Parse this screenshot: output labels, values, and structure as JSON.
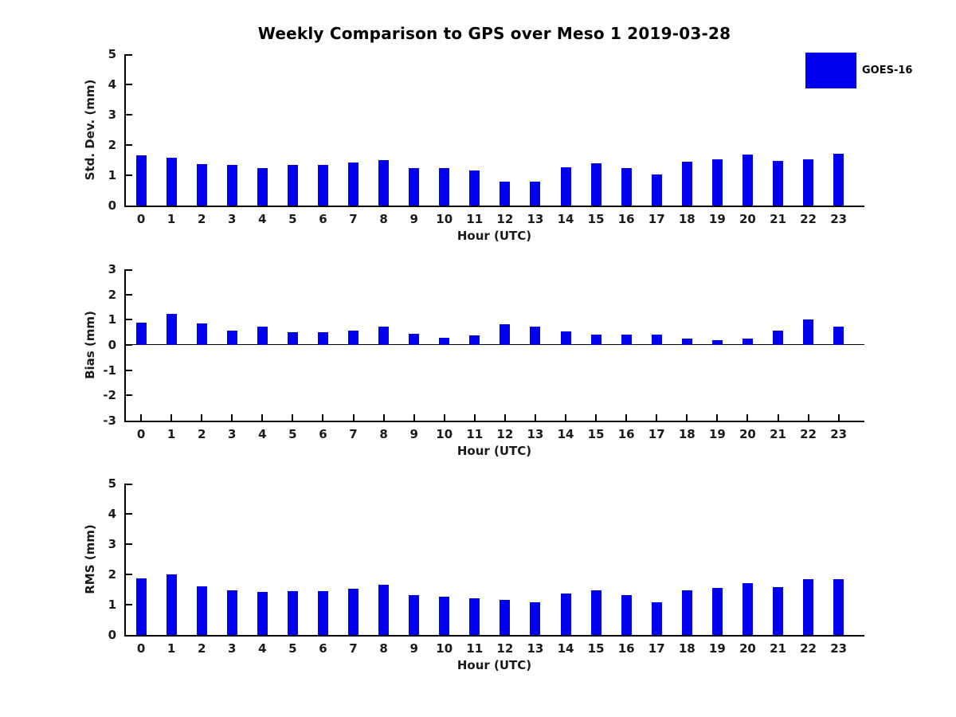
{
  "title": "Weekly Comparison to GPS over Meso 1 2019-03-28",
  "legend": {
    "label": "GOES-16",
    "color": "#0000EE"
  },
  "chart_data": [
    {
      "type": "bar",
      "id": "stddev",
      "title": "",
      "ylabel": "Std. Dev. (mm)",
      "xlabel": "Hour (UTC)",
      "ylim": [
        0,
        5
      ],
      "yticks": [
        0,
        1,
        2,
        3,
        4,
        5
      ],
      "grid": false,
      "legend_position": "upper-right-outside",
      "categories": [
        "0",
        "1",
        "2",
        "3",
        "4",
        "5",
        "6",
        "7",
        "8",
        "9",
        "10",
        "11",
        "12",
        "13",
        "14",
        "15",
        "16",
        "17",
        "18",
        "19",
        "20",
        "21",
        "22",
        "23"
      ],
      "series": [
        {
          "name": "GOES-16",
          "values": [
            1.65,
            1.57,
            1.38,
            1.35,
            1.25,
            1.35,
            1.35,
            1.41,
            1.51,
            1.25,
            1.25,
            1.15,
            0.8,
            0.8,
            1.27,
            1.4,
            1.24,
            1.02,
            1.45,
            1.53,
            1.69,
            1.47,
            1.53,
            1.7
          ]
        }
      ]
    },
    {
      "type": "bar",
      "id": "bias",
      "title": "",
      "ylabel": "Bias (mm)",
      "xlabel": "Hour (UTC)",
      "ylim": [
        -3,
        3
      ],
      "yticks": [
        -3,
        -2,
        -1,
        0,
        1,
        2,
        3
      ],
      "grid": false,
      "categories": [
        "0",
        "1",
        "2",
        "3",
        "4",
        "5",
        "6",
        "7",
        "8",
        "9",
        "10",
        "11",
        "12",
        "13",
        "14",
        "15",
        "16",
        "17",
        "18",
        "19",
        "20",
        "21",
        "22",
        "23"
      ],
      "series": [
        {
          "name": "GOES-16",
          "values": [
            0.9,
            1.22,
            0.85,
            0.58,
            0.72,
            0.52,
            0.52,
            0.58,
            0.72,
            0.43,
            0.28,
            0.38,
            0.83,
            0.72,
            0.53,
            0.4,
            0.42,
            0.42,
            0.25,
            0.2,
            0.25,
            0.58,
            1.02,
            0.74
          ]
        }
      ]
    },
    {
      "type": "bar",
      "id": "rms",
      "title": "",
      "ylabel": "RMS (mm)",
      "xlabel": "Hour (UTC)",
      "ylim": [
        0,
        5
      ],
      "yticks": [
        0,
        1,
        2,
        3,
        4,
        5
      ],
      "grid": false,
      "categories": [
        "0",
        "1",
        "2",
        "3",
        "4",
        "5",
        "6",
        "7",
        "8",
        "9",
        "10",
        "11",
        "12",
        "13",
        "14",
        "15",
        "16",
        "17",
        "18",
        "19",
        "20",
        "21",
        "22",
        "23"
      ],
      "series": [
        {
          "name": "GOES-16",
          "values": [
            1.88,
            2.0,
            1.6,
            1.47,
            1.43,
            1.45,
            1.45,
            1.53,
            1.66,
            1.32,
            1.27,
            1.22,
            1.16,
            1.08,
            1.37,
            1.47,
            1.32,
            1.08,
            1.47,
            1.55,
            1.71,
            1.57,
            1.83,
            1.84
          ]
        }
      ]
    }
  ]
}
